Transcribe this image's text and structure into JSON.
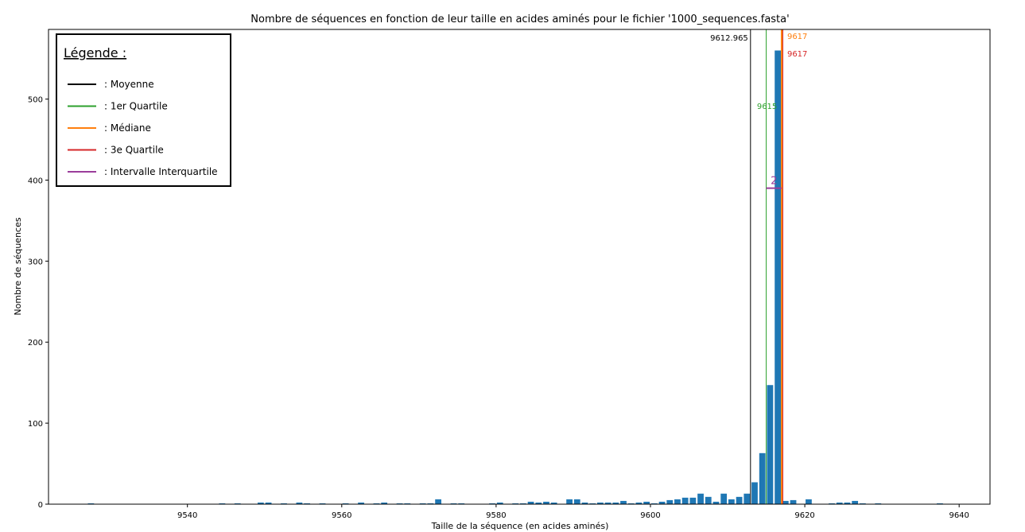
{
  "chart_data": {
    "type": "bar",
    "title": "Nombre de séquences en fonction de leur taille en acides aminés pour le fichier '1000_sequences.fasta'",
    "xlabel": "Taille de la séquence (en acides aminés)",
    "ylabel": "Nombre de séquences",
    "xlim": [
      9522,
      9644
    ],
    "ylim": [
      0,
      586
    ],
    "xticks": [
      9540,
      9560,
      9580,
      9600,
      9620,
      9640
    ],
    "yticks": [
      0,
      100,
      200,
      300,
      400,
      500
    ],
    "bar_color": "#1f77b4",
    "bars": [
      {
        "x": 9527,
        "y": 1
      },
      {
        "x": 9544,
        "y": 1
      },
      {
        "x": 9546,
        "y": 1
      },
      {
        "x": 9549,
        "y": 2
      },
      {
        "x": 9550,
        "y": 2
      },
      {
        "x": 9552,
        "y": 1
      },
      {
        "x": 9554,
        "y": 2
      },
      {
        "x": 9555,
        "y": 1
      },
      {
        "x": 9557,
        "y": 1
      },
      {
        "x": 9560,
        "y": 1
      },
      {
        "x": 9562,
        "y": 2
      },
      {
        "x": 9564,
        "y": 1
      },
      {
        "x": 9565,
        "y": 2
      },
      {
        "x": 9567,
        "y": 1
      },
      {
        "x": 9568,
        "y": 1
      },
      {
        "x": 9570,
        "y": 1
      },
      {
        "x": 9571,
        "y": 1
      },
      {
        "x": 9572,
        "y": 6
      },
      {
        "x": 9574,
        "y": 1
      },
      {
        "x": 9575,
        "y": 1
      },
      {
        "x": 9579,
        "y": 1
      },
      {
        "x": 9580,
        "y": 2
      },
      {
        "x": 9582,
        "y": 1
      },
      {
        "x": 9583,
        "y": 1
      },
      {
        "x": 9584,
        "y": 3
      },
      {
        "x": 9585,
        "y": 2
      },
      {
        "x": 9586,
        "y": 3
      },
      {
        "x": 9587,
        "y": 2
      },
      {
        "x": 9589,
        "y": 6
      },
      {
        "x": 9590,
        "y": 6
      },
      {
        "x": 9591,
        "y": 2
      },
      {
        "x": 9592,
        "y": 1
      },
      {
        "x": 9593,
        "y": 2
      },
      {
        "x": 9594,
        "y": 2
      },
      {
        "x": 9595,
        "y": 2
      },
      {
        "x": 9596,
        "y": 4
      },
      {
        "x": 9597,
        "y": 1
      },
      {
        "x": 9598,
        "y": 2
      },
      {
        "x": 9599,
        "y": 3
      },
      {
        "x": 9600,
        "y": 1
      },
      {
        "x": 9601,
        "y": 3
      },
      {
        "x": 9602,
        "y": 5
      },
      {
        "x": 9603,
        "y": 6
      },
      {
        "x": 9604,
        "y": 8
      },
      {
        "x": 9605,
        "y": 8
      },
      {
        "x": 9606,
        "y": 13
      },
      {
        "x": 9607,
        "y": 9
      },
      {
        "x": 9608,
        "y": 3
      },
      {
        "x": 9609,
        "y": 13
      },
      {
        "x": 9610,
        "y": 6
      },
      {
        "x": 9611,
        "y": 9
      },
      {
        "x": 9612,
        "y": 13
      },
      {
        "x": 9613,
        "y": 27
      },
      {
        "x": 9614,
        "y": 63
      },
      {
        "x": 9615,
        "y": 147
      },
      {
        "x": 9616,
        "y": 560
      },
      {
        "x": 9617,
        "y": 4
      },
      {
        "x": 9618,
        "y": 5
      },
      {
        "x": 9620,
        "y": 6
      },
      {
        "x": 9623,
        "y": 1
      },
      {
        "x": 9624,
        "y": 2
      },
      {
        "x": 9625,
        "y": 2
      },
      {
        "x": 9626,
        "y": 4
      },
      {
        "x": 9627,
        "y": 1
      },
      {
        "x": 9629,
        "y": 1
      },
      {
        "x": 9637,
        "y": 1
      }
    ],
    "annotations": {
      "mean": {
        "value": 9612.965,
        "label": "9612.965",
        "color": "#000000"
      },
      "q1": {
        "value": 9615,
        "label": "9615",
        "color": "#2ca02c"
      },
      "median": {
        "value": 9617,
        "label": "9617",
        "color": "#ff7f0e"
      },
      "q3": {
        "value": 9617,
        "label": "9617",
        "color": "#d62728"
      },
      "iqr": {
        "from": 9615,
        "to": 9617,
        "y": 390,
        "label": "2",
        "color": "#9b3d9b"
      }
    },
    "legend": {
      "title": "Légende :",
      "placement": "top-left",
      "entries": [
        {
          "label": ": Moyenne",
          "color": "#000000"
        },
        {
          "label": ": 1er Quartile",
          "color": "#2ca02c"
        },
        {
          "label": ": Médiane",
          "color": "#ff7f0e"
        },
        {
          "label": ": 3e Quartile",
          "color": "#d62728"
        },
        {
          "label": ": Intervalle Interquartile",
          "color": "#9b3d9b"
        }
      ]
    }
  }
}
